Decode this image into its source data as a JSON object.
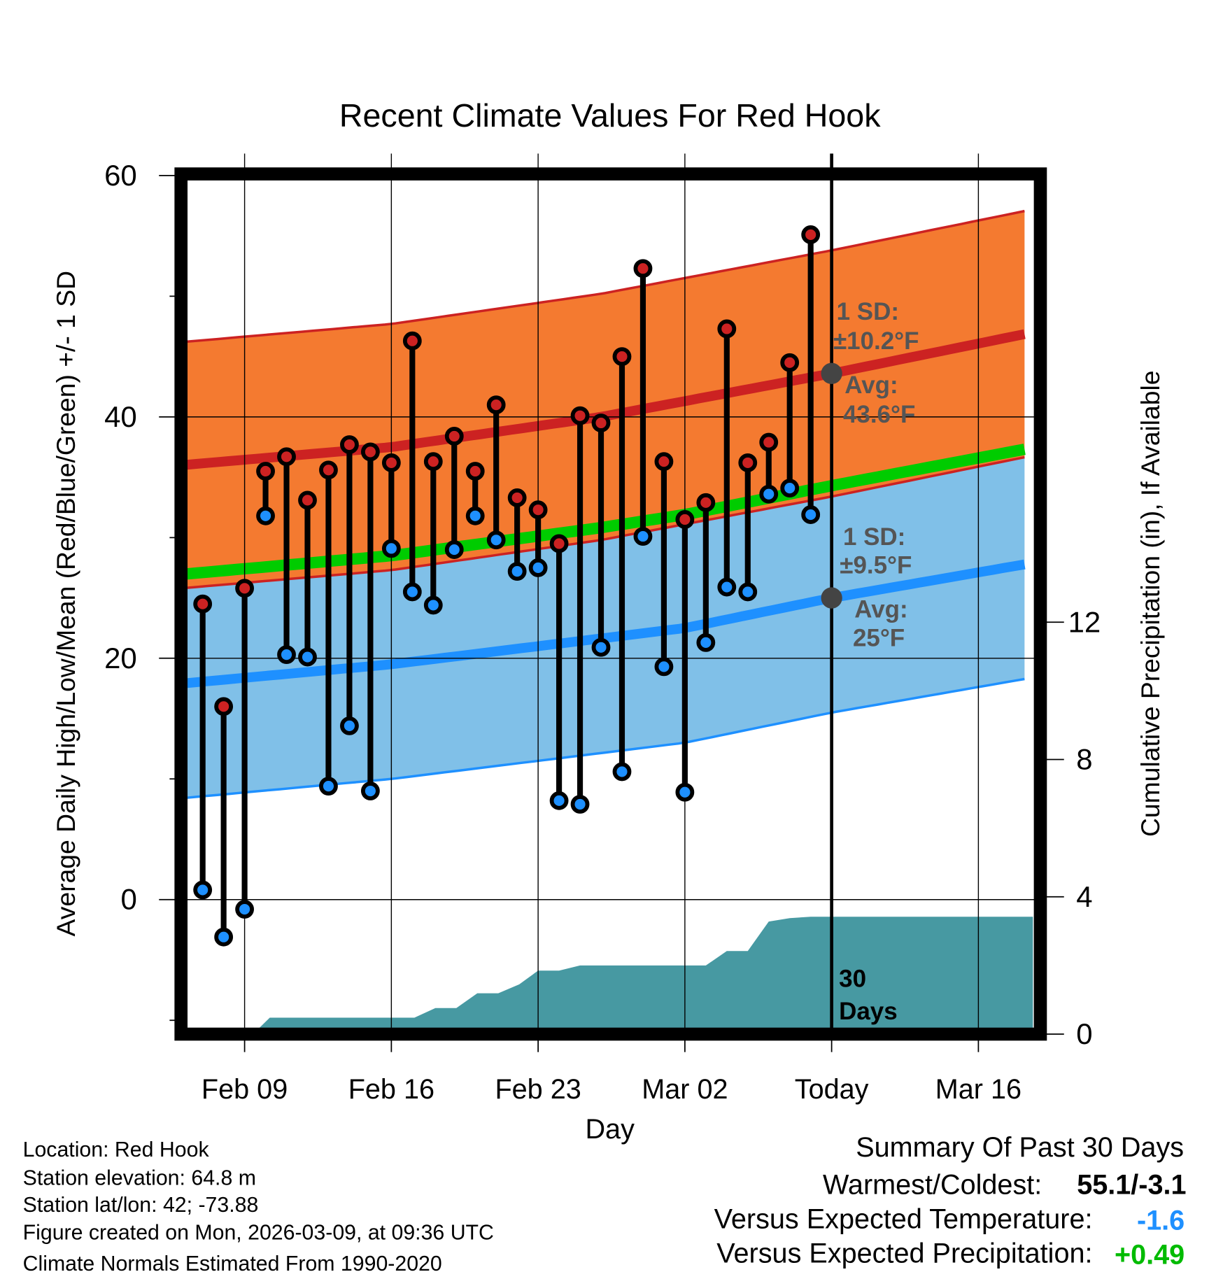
{
  "chart_data": {
    "type": "line",
    "title": "Recent Climate Values For Red Hook",
    "xlabel": "Day",
    "ylabel": "Average Daily High/Low/Mean (Red/Blue/Green) +/- 1 SD",
    "y2label": "Cumulative Precipitation (in), If Available",
    "ylim": [
      -11,
      60
    ],
    "y2lim": [
      0,
      23.5
    ],
    "xlim_days_from_feb09": [
      -3.03,
      37.98
    ],
    "yticks": [
      "60",
      "40",
      "20",
      "0"
    ],
    "y2ticks": [
      "12",
      "8",
      "4",
      "0"
    ],
    "xticks": [
      {
        "label": "Feb 09",
        "day": 0
      },
      {
        "label": "Feb 16",
        "day": 7
      },
      {
        "label": "Feb 23",
        "day": 14
      },
      {
        "label": "Mar 02",
        "day": 21
      },
      {
        "label": "Today",
        "day": 28
      },
      {
        "label": "Mar 16",
        "day": 35
      }
    ],
    "grid": true,
    "daily": {
      "dates": [
        "Feb 07",
        "Feb 08",
        "Feb 09",
        "Feb 10",
        "Feb 11",
        "Feb 12",
        "Feb 13",
        "Feb 14",
        "Feb 15",
        "Feb 16",
        "Feb 17",
        "Feb 18",
        "Feb 19",
        "Feb 20",
        "Feb 21",
        "Feb 22",
        "Feb 23",
        "Feb 24",
        "Feb 25",
        "Feb 26",
        "Feb 27",
        "Feb 28",
        "Mar 01",
        "Mar 02",
        "Mar 03",
        "Mar 04",
        "Mar 05",
        "Mar 06",
        "Mar 07",
        "Mar 08"
      ],
      "first_day": -2,
      "highs": [
        24.5,
        16.0,
        25.8,
        35.5,
        36.7,
        33.1,
        35.6,
        37.7,
        37.1,
        36.2,
        46.3,
        36.3,
        38.4,
        35.5,
        41.0,
        33.3,
        32.3,
        29.5,
        40.1,
        39.5,
        45.0,
        52.3,
        36.3,
        31.5,
        32.9,
        47.3,
        36.2,
        37.9,
        44.5,
        55.1
      ],
      "lows": [
        0.8,
        -3.1,
        -0.8,
        31.8,
        20.3,
        20.1,
        9.4,
        14.4,
        9.0,
        29.1,
        25.5,
        24.4,
        29.0,
        31.8,
        29.8,
        27.2,
        27.5,
        8.2,
        7.9,
        20.9,
        10.6,
        30.1,
        19.3,
        8.9,
        21.3,
        25.9,
        25.5,
        33.6,
        34.1,
        31.9
      ]
    },
    "normals": {
      "high_mean": {
        "days": [
          -3,
          7,
          17,
          28,
          37.6
        ],
        "values": [
          36.0,
          37.5,
          40.0,
          43.6,
          47.0
        ]
      },
      "high_sd": 10.2,
      "low_mean": {
        "days": [
          -3,
          7,
          21,
          28,
          37.6
        ],
        "values": [
          17.9,
          19.5,
          22.5,
          25.0,
          27.9
        ]
      },
      "low_sd": 9.5
    },
    "precip_cumulative": {
      "days": [
        0.4,
        1.2,
        8.1,
        9.1,
        10.1,
        11.1,
        12.1,
        13.1,
        14.0,
        15.0,
        16.0,
        22.0,
        23.0,
        24.0,
        25.0,
        26.0,
        27.0,
        37.6
      ],
      "values": [
        0,
        0.48,
        0.48,
        0.76,
        0.76,
        1.19,
        1.19,
        1.45,
        1.85,
        1.85,
        2.0,
        2.0,
        2.42,
        2.42,
        3.28,
        3.38,
        3.42,
        3.42
      ]
    },
    "annotations": {
      "high_sd": [
        "1 SD:",
        "±10.2°F"
      ],
      "high_avg": [
        "Avg:",
        "43.6°F"
      ],
      "low_sd": [
        "1 SD:",
        "±9.5°F"
      ],
      "low_avg": [
        "Avg:",
        "25°F"
      ],
      "window": [
        "30",
        "Days"
      ]
    },
    "colors": {
      "high": "#cc2222",
      "low": "#1e90ff",
      "mean": "#00cc00",
      "high_band": "#f47a30",
      "low_band": "#80c0e8",
      "precip": "#4799a2",
      "avg_dot": "#444444"
    }
  },
  "info": {
    "location": "Location: Red Hook",
    "elevation": "Station elevation: 64.8 m",
    "latlon": "Station lat/lon: 42; -73.88",
    "created": "Figure created on Mon, 2026-03-09, at 09:36 UTC",
    "normals": "Climate Normals Estimated From 1990-2020"
  },
  "summary": {
    "title": "Summary Of Past 30 Days",
    "warmest_label": "Warmest/Coldest:",
    "warmest_value": "55.1/-3.1",
    "temp_label": "Versus Expected Temperature:",
    "temp_value": "-1.6",
    "temp_color": "#1e90ff",
    "precip_label": "Versus Expected Precipitation:",
    "precip_value": "+0.49",
    "precip_color": "#00bb00"
  }
}
